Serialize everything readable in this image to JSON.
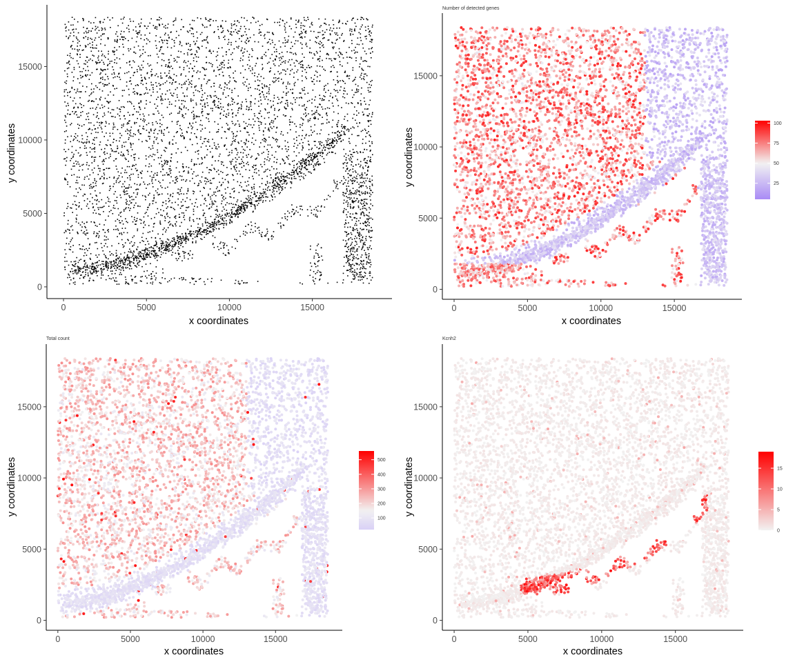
{
  "colors": {
    "black": "#000000",
    "low": "#a98bf5",
    "mid": "#f2f2f2",
    "high": "#ff0000"
  },
  "chart_data": [
    {
      "type": "scatter",
      "title": "",
      "xlabel": "x coordinates",
      "ylabel": "y coordinates",
      "xlim": [
        -1000,
        19800
      ],
      "ylim": [
        -800,
        19200
      ],
      "xticks": [
        0,
        5000,
        10000,
        15000
      ],
      "yticks": [
        0,
        5000,
        10000,
        15000
      ],
      "color_mode": "solid",
      "point_color": "#000000",
      "legend": null
    },
    {
      "type": "scatter",
      "title": "Number of detected genes",
      "xlabel": "x coordinates",
      "ylabel": "y coordinates",
      "xlim": [
        -800,
        19600
      ],
      "ylim": [
        -700,
        19400
      ],
      "xticks": [
        0,
        5000,
        10000,
        15000
      ],
      "yticks": [
        0,
        5000,
        10000,
        15000
      ],
      "color_mode": "gradient",
      "value_range": [
        5,
        103
      ],
      "legend": {
        "ticks": [
          25,
          50,
          75,
          100
        ],
        "low": "#a98bf5",
        "mid": "#f2f2f2",
        "high": "#ff0000",
        "midpoint": 50
      }
    },
    {
      "type": "scatter",
      "title": "Total count",
      "xlabel": "x coordinates",
      "ylabel": "y coordinates",
      "xlim": [
        -800,
        19600
      ],
      "ylim": [
        -700,
        19400
      ],
      "xticks": [
        0,
        5000,
        10000,
        15000
      ],
      "yticks": [
        0,
        5000,
        10000,
        15000
      ],
      "color_mode": "gradient",
      "value_range": [
        20,
        560
      ],
      "legend": {
        "ticks": [
          100,
          200,
          300,
          400,
          500
        ],
        "low": "#d9d0f6",
        "mid": "#f2f2f2",
        "high": "#ff0000",
        "midpoint": 150
      }
    },
    {
      "type": "scatter",
      "title": "Kcnh2",
      "xlabel": "x coordinates",
      "ylabel": "y coordinates",
      "xlim": [
        -800,
        19600
      ],
      "ylim": [
        -700,
        19400
      ],
      "xticks": [
        0,
        5000,
        10000,
        15000
      ],
      "yticks": [
        0,
        5000,
        10000,
        15000
      ],
      "color_mode": "gradient",
      "value_range": [
        0,
        19
      ],
      "legend": {
        "ticks": [
          0,
          5,
          10,
          15
        ],
        "low": "#f2f2f2",
        "mid": "#f2f2f2",
        "high": "#ff0000",
        "midpoint": 0
      }
    }
  ]
}
